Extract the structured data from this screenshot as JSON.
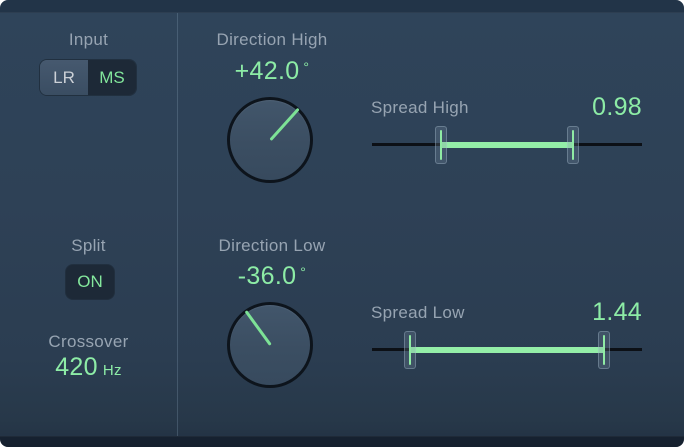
{
  "colors": {
    "background": "#2e4156",
    "accent_green": "#8deca6",
    "label_gray": "#97a4b2",
    "dark_button": "#1d2937"
  },
  "left_panel": {
    "input": {
      "label": "Input",
      "options": [
        {
          "label": "LR",
          "selected": false
        },
        {
          "label": "MS",
          "selected": true
        }
      ]
    },
    "split": {
      "label": "Split",
      "state": "ON"
    },
    "crossover": {
      "label": "Crossover",
      "value": "420",
      "unit": "Hz"
    }
  },
  "direction_high": {
    "label": "Direction High",
    "value": "+42.0",
    "unit": "°",
    "angle_deg": 42
  },
  "spread_high": {
    "label": "Spread High",
    "value": "0.98"
  },
  "direction_low": {
    "label": "Direction Low",
    "value": "-36.0",
    "unit": "°",
    "angle_deg": -36
  },
  "spread_low": {
    "label": "Spread Low",
    "value": "1.44"
  }
}
